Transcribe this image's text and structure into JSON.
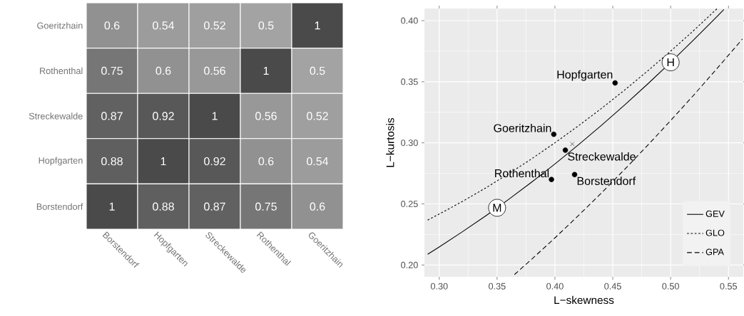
{
  "chart_data": [
    {
      "type": "heatmap",
      "categories": [
        "Borstendorf",
        "Hopfgarten",
        "Streckewalde",
        "Rothenthal",
        "Goeritzhain"
      ],
      "y_categories": [
        "Goeritzhain",
        "Rothenthal",
        "Streckewalde",
        "Hopfgarten",
        "Borstendorf"
      ],
      "cells": [
        [
          0.6,
          0.54,
          0.52,
          0.5,
          1
        ],
        [
          0.75,
          0.6,
          0.56,
          1,
          0.5
        ],
        [
          0.87,
          0.92,
          1,
          0.56,
          0.52
        ],
        [
          0.88,
          1,
          0.92,
          0.6,
          0.54
        ],
        [
          1,
          0.88,
          0.87,
          0.75,
          0.6
        ]
      ],
      "data_labels": true
    },
    {
      "type": "line",
      "xlabel": "L−skewness",
      "ylabel": "L−kurtosis",
      "xlim": [
        0.2872,
        0.5628
      ],
      "ylim": [
        0.1903,
        0.4099
      ],
      "xticks": [
        {
          "value": 0.3,
          "label": "0.30"
        },
        {
          "value": 0.35,
          "label": "0.35"
        },
        {
          "value": 0.4,
          "label": "0.40"
        },
        {
          "value": 0.45,
          "label": "0.45"
        },
        {
          "value": 0.5,
          "label": "0.50"
        },
        {
          "value": 0.55,
          "label": "0.55"
        }
      ],
      "yticks": [
        {
          "value": 0.2,
          "label": "0.20"
        },
        {
          "value": 0.25,
          "label": "0.25"
        },
        {
          "value": 0.3,
          "label": "0.30"
        },
        {
          "value": 0.35,
          "label": "0.35"
        },
        {
          "value": 0.4,
          "label": "0.40"
        }
      ],
      "grid": true,
      "legend": "right",
      "series": [
        {
          "name": "GEV",
          "type": "line",
          "line_style": "solid",
          "color": "#000000",
          "x": [
            0.29,
            0.3,
            0.32,
            0.34,
            0.35,
            0.36,
            0.38,
            0.4,
            0.42,
            0.44,
            0.46,
            0.48,
            0.5,
            0.52,
            0.54,
            0.546
          ],
          "values": [
            0.2088,
            0.2148,
            0.2272,
            0.2401,
            0.2468,
            0.2537,
            0.2679,
            0.2827,
            0.2981,
            0.3142,
            0.3308,
            0.348,
            0.3659,
            0.3843,
            0.4033,
            0.4091
          ]
        },
        {
          "name": "GLO",
          "type": "line",
          "line_style": "dotted",
          "color": "#000000",
          "x": [
            0.29,
            0.3,
            0.32,
            0.34,
            0.36,
            0.38,
            0.4,
            0.42,
            0.44,
            0.46,
            0.48,
            0.5,
            0.52,
            0.54
          ],
          "values": [
            0.2368,
            0.2417,
            0.252,
            0.263,
            0.2747,
            0.287,
            0.3,
            0.3137,
            0.328,
            0.343,
            0.3587,
            0.375,
            0.392,
            0.4097
          ]
        },
        {
          "name": "GPA",
          "type": "line",
          "line_style": "dashed",
          "color": "#000000",
          "x": [
            0.365,
            0.38,
            0.4,
            0.42,
            0.44,
            0.46,
            0.48,
            0.5,
            0.52,
            0.54,
            0.56,
            0.562
          ],
          "values": [
            0.1922,
            0.2048,
            0.2222,
            0.2402,
            0.2588,
            0.278,
            0.2978,
            0.3182,
            0.3391,
            0.3607,
            0.3827,
            0.385
          ]
        },
        {
          "type": "scatter",
          "marker": "circle",
          "color": "#000000",
          "x": [
            0.452,
            0.399,
            0.409,
            0.397,
            0.417
          ],
          "values": [
            0.349,
            0.307,
            0.294,
            0.27,
            0.274
          ]
        },
        {
          "type": "scatter",
          "marker": "cross",
          "color": "#000000",
          "x": [
            0.415
          ],
          "values": [
            0.299
          ]
        }
      ],
      "annotations": [
        {
          "text": "Hopfgarten",
          "x": 0.452,
          "y": 0.349
        },
        {
          "text": "Goeritzhain",
          "x": 0.399,
          "y": 0.307
        },
        {
          "text": "Streckewalde",
          "x": 0.409,
          "y": 0.294
        },
        {
          "text": "Rothenthal",
          "x": 0.397,
          "y": 0.27
        },
        {
          "text": "Borstendorf",
          "x": 0.417,
          "y": 0.274
        },
        {
          "text": "M",
          "x": 0.35,
          "y": 0.2468
        },
        {
          "text": "H",
          "x": 0.5,
          "y": 0.3659
        }
      ]
    }
  ]
}
